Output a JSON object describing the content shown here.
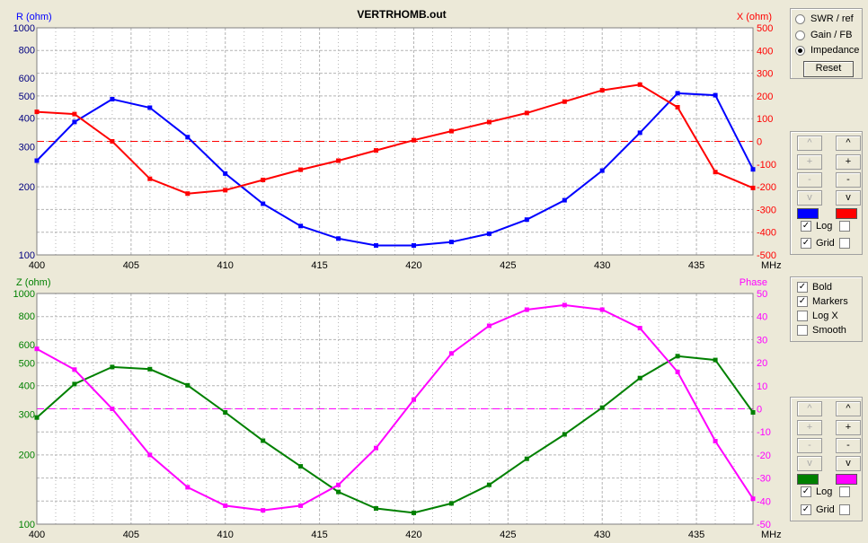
{
  "title": "VERTRHOMB.out",
  "colors": {
    "r": "#0000ff",
    "x": "#ff0000",
    "z": "#008000",
    "phase": "#ff00ff",
    "grid": "#b4b4b4"
  },
  "top": {
    "left_label": "R (ohm)",
    "right_label": "X (ohm)",
    "left_ticks": [
      "1000",
      "800",
      "600",
      "500",
      "400",
      "300",
      "200",
      "100"
    ],
    "right_ticks": [
      "500",
      "400",
      "300",
      "200",
      "100",
      "0",
      "-100",
      "-200",
      "-300",
      "-400",
      "-500"
    ],
    "x_ticks": [
      "400",
      "405",
      "410",
      "415",
      "420",
      "425",
      "430",
      "435"
    ],
    "x_unit": "MHz"
  },
  "bottom": {
    "left_label": "Z (ohm)",
    "right_label": "Phase",
    "left_ticks": [
      "1000",
      "800",
      "600",
      "500",
      "400",
      "300",
      "200",
      "100"
    ],
    "right_ticks": [
      "50",
      "40",
      "30",
      "20",
      "10",
      "0",
      "-10",
      "-20",
      "-30",
      "-40",
      "-50"
    ],
    "x_ticks": [
      "400",
      "405",
      "410",
      "415",
      "420",
      "425",
      "430",
      "435"
    ],
    "x_unit": "MHz"
  },
  "chart_data": [
    {
      "type": "line",
      "title": "VERTRHOMB.out",
      "xlabel": "MHz",
      "ylabel": "R (ohm)",
      "y2label": "X (ohm)",
      "xlim": [
        400,
        438
      ],
      "ylim": [
        100,
        1000
      ],
      "y_scale": "log",
      "y2lim": [
        -500,
        500
      ],
      "grid": true,
      "x": [
        400,
        402,
        404,
        406,
        408,
        410,
        412,
        414,
        416,
        418,
        420,
        422,
        424,
        426,
        428,
        430,
        432,
        434,
        436,
        438
      ],
      "series": [
        {
          "name": "R (ohm)",
          "axis": "left",
          "color": "#0000ff",
          "values": [
            260,
            385,
            485,
            445,
            330,
            228,
            168,
            134,
            118,
            110,
            110,
            114,
            124,
            143,
            174,
            235,
            345,
            515,
            505,
            238
          ]
        },
        {
          "name": "X (ohm)",
          "axis": "right",
          "color": "#ff0000",
          "values": [
            130,
            120,
            0,
            -165,
            -230,
            -215,
            -170,
            -125,
            -85,
            -40,
            5,
            45,
            85,
            125,
            175,
            225,
            250,
            150,
            -135,
            -205
          ]
        }
      ]
    },
    {
      "type": "line",
      "xlabel": "MHz",
      "ylabel": "Z (ohm)",
      "y2label": "Phase",
      "xlim": [
        400,
        438
      ],
      "ylim": [
        100,
        1000
      ],
      "y_scale": "log",
      "y2lim": [
        -50,
        50
      ],
      "grid": true,
      "x": [
        400,
        402,
        404,
        406,
        408,
        410,
        412,
        414,
        416,
        418,
        420,
        422,
        424,
        426,
        428,
        430,
        432,
        434,
        436,
        438
      ],
      "series": [
        {
          "name": "Z (ohm)",
          "axis": "left",
          "color": "#008000",
          "values": [
            290,
            405,
            480,
            470,
            400,
            305,
            230,
            178,
            138,
            117,
            112,
            123,
            148,
            192,
            245,
            320,
            430,
            535,
            515,
            305
          ]
        },
        {
          "name": "Phase",
          "axis": "right",
          "color": "#ff00ff",
          "values": [
            26,
            17,
            0,
            -20,
            -34,
            -42,
            -44,
            -42,
            -33,
            -17,
            4,
            24,
            36,
            43,
            45,
            43,
            35,
            16,
            -14,
            -39
          ]
        }
      ]
    }
  ],
  "controls": {
    "radios": [
      {
        "label": "SWR / ref",
        "checked": false
      },
      {
        "label": "Gain / FB",
        "checked": false
      },
      {
        "label": "Impedance",
        "checked": true
      }
    ],
    "reset_label": "Reset",
    "scale_buttons": [
      "^",
      "+",
      "-",
      "v"
    ],
    "log_label": "Log",
    "grid_label": "Grid",
    "options": [
      {
        "label": "Bold",
        "checked": true
      },
      {
        "label": "Markers",
        "checked": true
      },
      {
        "label": "Log X",
        "checked": false
      },
      {
        "label": "Smooth",
        "checked": false
      }
    ],
    "top_log": [
      true,
      false
    ],
    "top_grid": [
      true,
      false
    ],
    "bottom_log": [
      true,
      false
    ],
    "bottom_grid": [
      true,
      false
    ],
    "check_mark": "✓"
  }
}
